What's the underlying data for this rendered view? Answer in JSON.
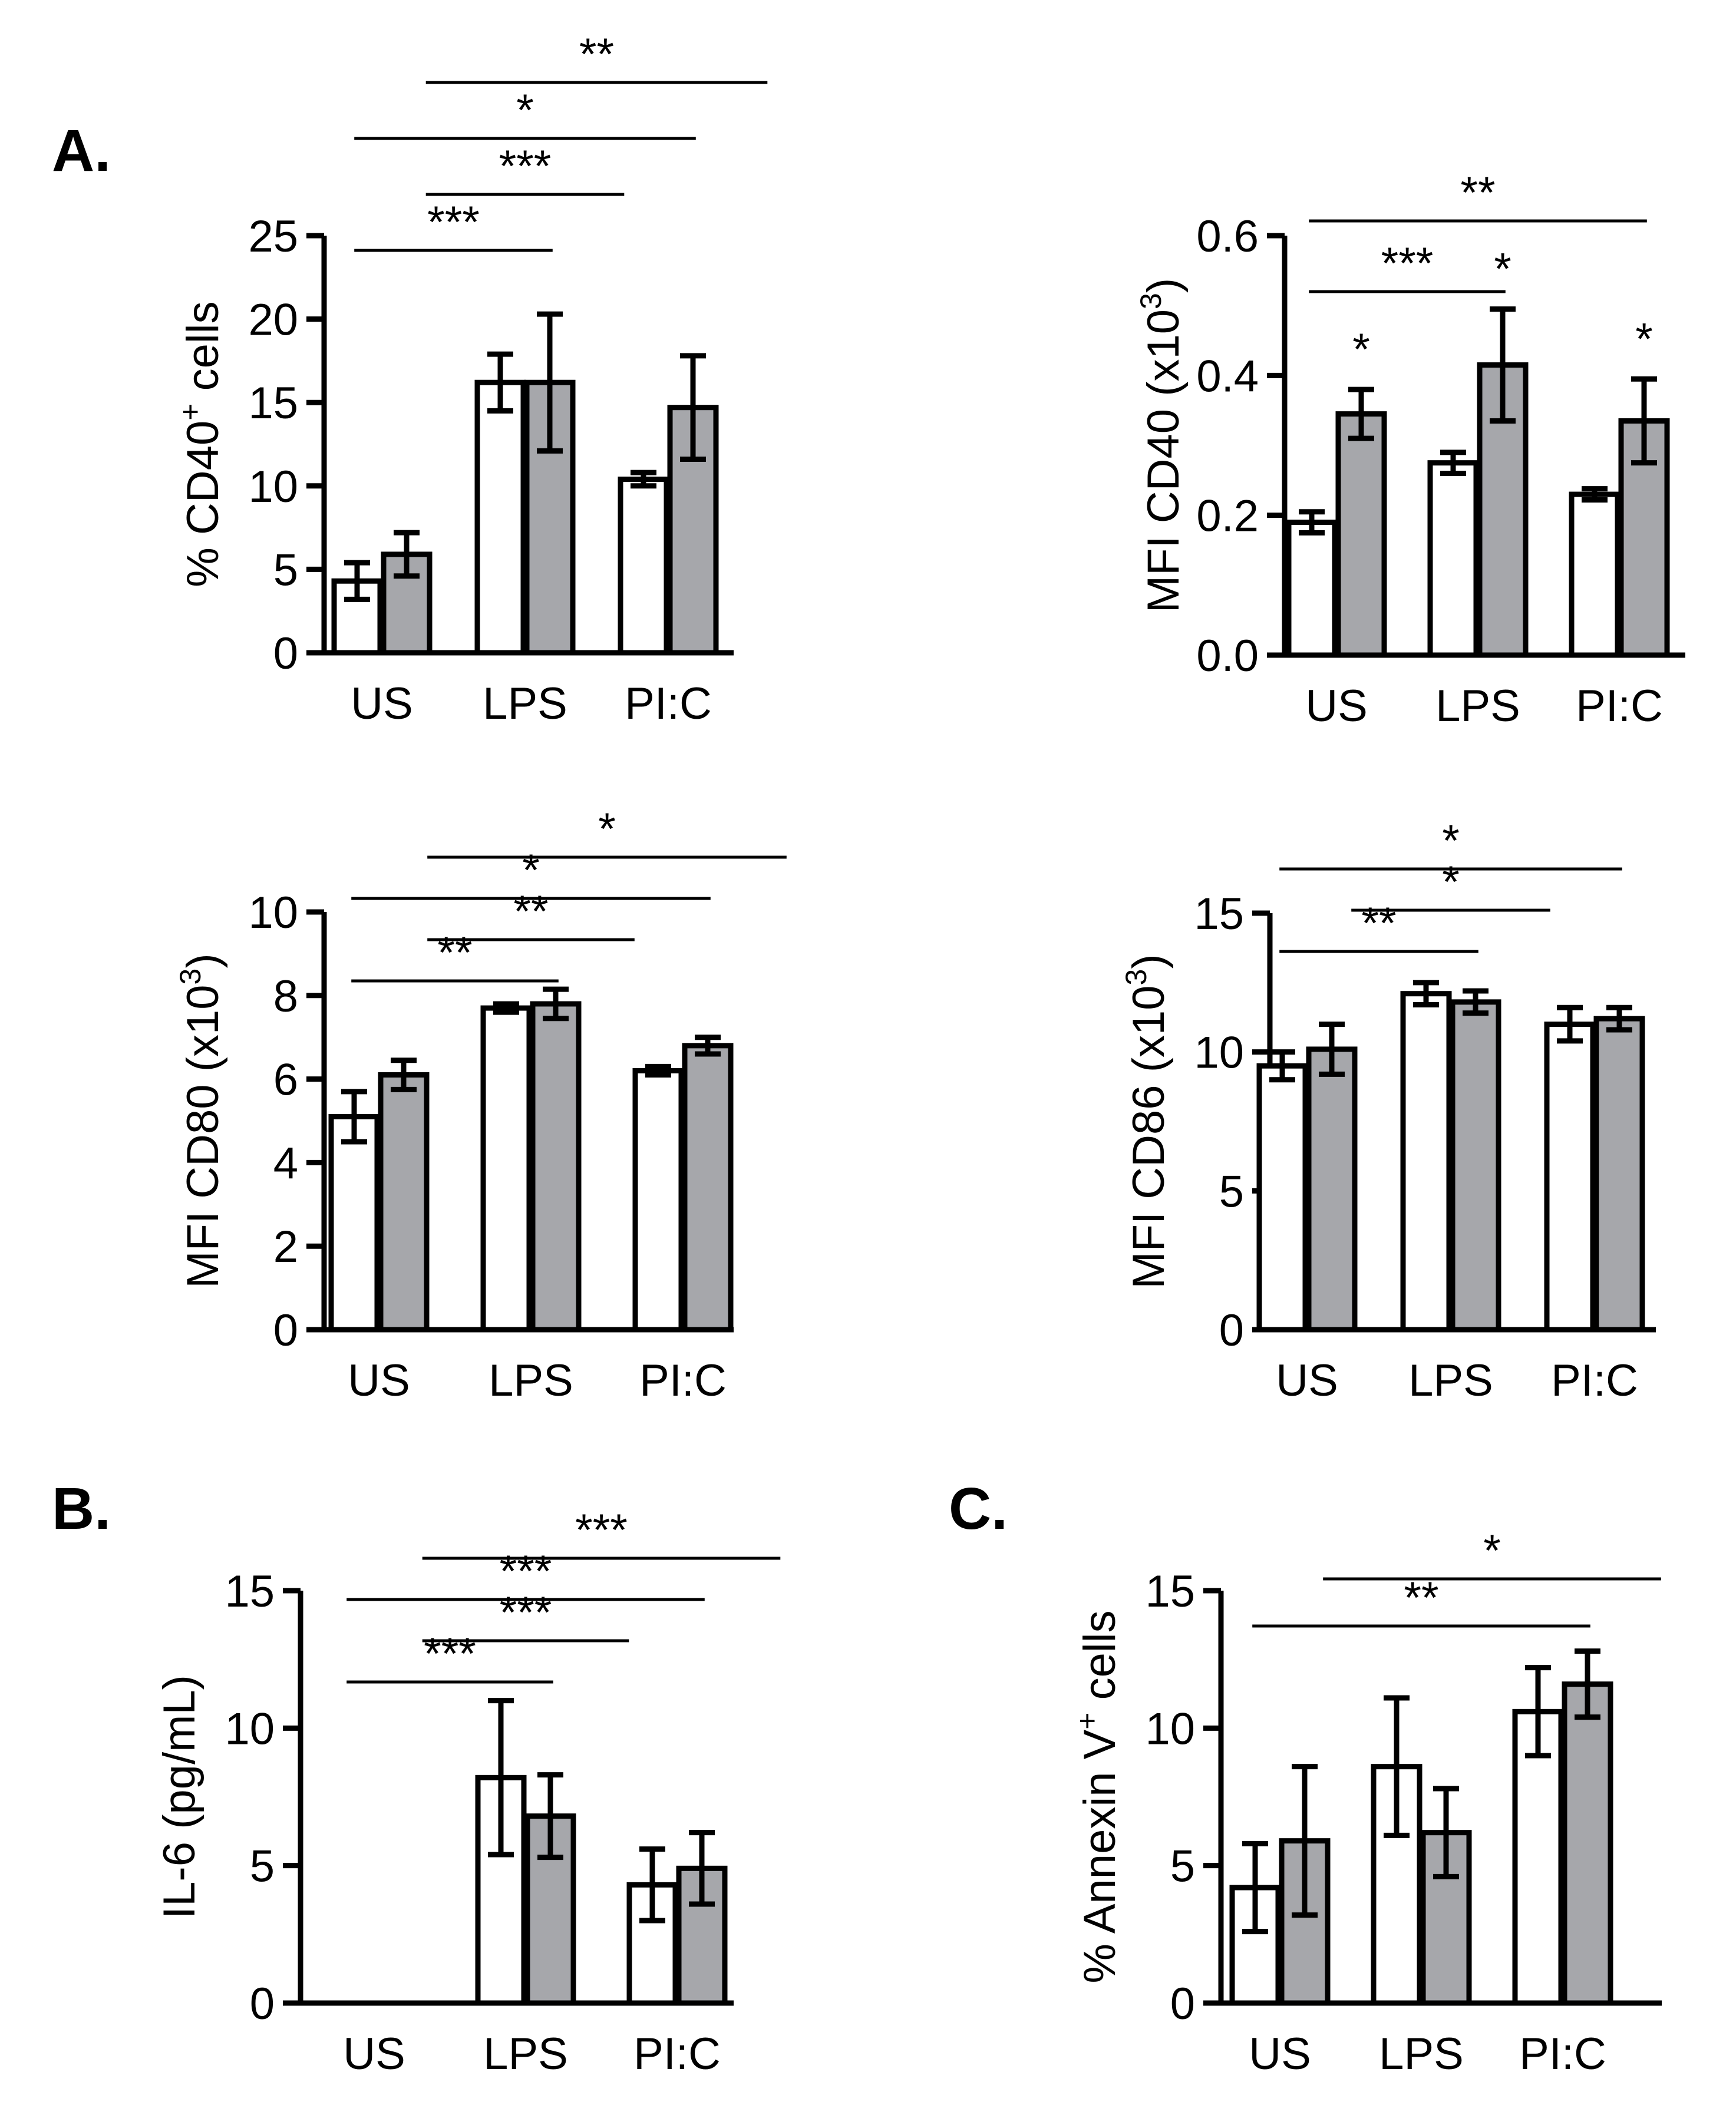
{
  "panel_labels": {
    "A": "A.",
    "B": "B.",
    "C": "C."
  },
  "colors": {
    "series1": "#ffffff",
    "series2": "#a6a7ab",
    "stroke": "#000000"
  },
  "chart_data": [
    {
      "id": "cd40pct",
      "type": "bar",
      "ylabel": "% CD40",
      "ylabel_sup": "+",
      "ylabel_tail": " cells",
      "categories": [
        "US",
        "LPS",
        "PI:C"
      ],
      "yticks": [
        "0",
        "5",
        "10",
        "15",
        "20",
        "25"
      ],
      "ylim": [
        0,
        25
      ],
      "series": [
        {
          "name": "white",
          "values": [
            4.3,
            16.2,
            10.4
          ],
          "errors": [
            1.1,
            1.7,
            0.4
          ]
        },
        {
          "name": "grey",
          "values": [
            5.9,
            16.2,
            14.7
          ],
          "errors": [
            1.3,
            4.1,
            3.1
          ]
        }
      ],
      "brackets": [
        {
          "from": 0,
          "to": 1,
          "level": 0,
          "stars": "***"
        },
        {
          "from": 0.5,
          "to": 1.5,
          "level": 1,
          "stars": "***"
        },
        {
          "from": 0,
          "to": 2,
          "level": 2,
          "stars": "*"
        },
        {
          "from": 0.5,
          "to": 2.5,
          "level": 3,
          "stars": "**"
        }
      ],
      "point_stars": []
    },
    {
      "id": "cd40mfi",
      "type": "bar",
      "ylabel": "MFI CD40 (x10",
      "ylabel_sup": "3",
      "ylabel_tail": ")",
      "categories": [
        "US",
        "LPS",
        "PI:C"
      ],
      "yticks": [
        "0.0",
        "0.2",
        "0.4",
        "0.6"
      ],
      "ylim": [
        0,
        0.6
      ],
      "series": [
        {
          "name": "white",
          "values": [
            0.19,
            0.275,
            0.23
          ],
          "errors": [
            0.015,
            0.015,
            0.008
          ]
        },
        {
          "name": "grey",
          "values": [
            0.345,
            0.415,
            0.335
          ],
          "errors": [
            0.035,
            0.08,
            0.06
          ]
        }
      ],
      "brackets": [
        {
          "from": 0,
          "to": 1,
          "level": 0,
          "stars": "***"
        },
        {
          "from": 0,
          "to": 2,
          "level": 1,
          "stars": "**"
        }
      ],
      "point_stars": [
        {
          "cat": 0,
          "series": 1,
          "stars": "*"
        },
        {
          "cat": 1,
          "series": 1,
          "stars": "*"
        },
        {
          "cat": 2,
          "series": 1,
          "stars": "*"
        }
      ]
    },
    {
      "id": "cd80mfi",
      "type": "bar",
      "ylabel": "MFI CD80 (x10",
      "ylabel_sup": "3",
      "ylabel_tail": ")",
      "categories": [
        "US",
        "LPS",
        "PI:C"
      ],
      "yticks": [
        "0",
        "2",
        "4",
        "6",
        "8",
        "10"
      ],
      "ylim": [
        0,
        10
      ],
      "series": [
        {
          "name": "white",
          "values": [
            5.1,
            7.7,
            6.2
          ],
          "errors": [
            0.6,
            0.1,
            0.1
          ]
        },
        {
          "name": "grey",
          "values": [
            6.1,
            7.8,
            6.8
          ],
          "errors": [
            0.35,
            0.35,
            0.2
          ]
        }
      ],
      "brackets": [
        {
          "from": 0,
          "to": 1,
          "level": 0,
          "stars": "**"
        },
        {
          "from": 0.5,
          "to": 1.5,
          "level": 1,
          "stars": "**"
        },
        {
          "from": 0,
          "to": 2,
          "level": 2,
          "stars": "*"
        },
        {
          "from": 0.5,
          "to": 2.5,
          "level": 3,
          "stars": "*"
        }
      ],
      "point_stars": []
    },
    {
      "id": "cd86mfi",
      "type": "bar",
      "ylabel": "MFI CD86 (x10",
      "ylabel_sup": "3",
      "ylabel_tail": ")",
      "categories": [
        "US",
        "LPS",
        "PI:C"
      ],
      "yticks": [
        "0",
        "5",
        "10",
        "15"
      ],
      "ylim": [
        0,
        15
      ],
      "series": [
        {
          "name": "white",
          "values": [
            9.5,
            12.1,
            11.0
          ],
          "errors": [
            0.5,
            0.4,
            0.6
          ]
        },
        {
          "name": "grey",
          "values": [
            10.1,
            11.8,
            11.2
          ],
          "errors": [
            0.9,
            0.4,
            0.4
          ]
        }
      ],
      "brackets": [
        {
          "from": 0,
          "to": 1,
          "level": 0,
          "stars": "**"
        },
        {
          "from": 0.5,
          "to": 1.5,
          "level": 1,
          "stars": "*"
        },
        {
          "from": 0,
          "to": 2,
          "level": 2,
          "stars": "*"
        }
      ],
      "point_stars": []
    },
    {
      "id": "il6",
      "type": "bar",
      "ylabel": "IL-6 (pg/mL)",
      "ylabel_sup": "",
      "ylabel_tail": "",
      "categories": [
        "US",
        "LPS",
        "PI:C"
      ],
      "yticks": [
        "0",
        "5",
        "10",
        "15"
      ],
      "ylim": [
        0,
        15
      ],
      "series": [
        {
          "name": "white",
          "values": [
            0,
            8.2,
            4.3
          ],
          "errors": [
            0,
            2.8,
            1.3
          ]
        },
        {
          "name": "grey",
          "values": [
            0,
            6.8,
            4.9
          ],
          "errors": [
            0,
            1.5,
            1.3
          ]
        }
      ],
      "brackets": [
        {
          "from": 0,
          "to": 1,
          "level": 0,
          "stars": "***"
        },
        {
          "from": 0.5,
          "to": 1.5,
          "level": 1,
          "stars": "***"
        },
        {
          "from": 0,
          "to": 2,
          "level": 2,
          "stars": "***"
        },
        {
          "from": 0.5,
          "to": 2.5,
          "level": 3,
          "stars": "***"
        }
      ],
      "point_stars": []
    },
    {
      "id": "annexin",
      "type": "bar",
      "ylabel": "% Annexin V",
      "ylabel_sup": "+",
      "ylabel_tail": " cells",
      "categories": [
        "US",
        "LPS",
        "PI:C"
      ],
      "yticks": [
        "0",
        "5",
        "10",
        "15"
      ],
      "ylim": [
        0,
        15
      ],
      "series": [
        {
          "name": "white",
          "values": [
            4.2,
            8.6,
            10.6
          ],
          "errors": [
            1.6,
            2.5,
            1.6
          ]
        },
        {
          "name": "grey",
          "values": [
            5.9,
            6.2,
            11.6
          ],
          "errors": [
            2.7,
            1.6,
            1.2
          ]
        }
      ],
      "brackets": [
        {
          "from": 0,
          "to": 2,
          "level": 0,
          "stars": "**"
        },
        {
          "from": 0.5,
          "to": 2.5,
          "level": 1,
          "stars": "*"
        }
      ],
      "point_stars": []
    }
  ]
}
